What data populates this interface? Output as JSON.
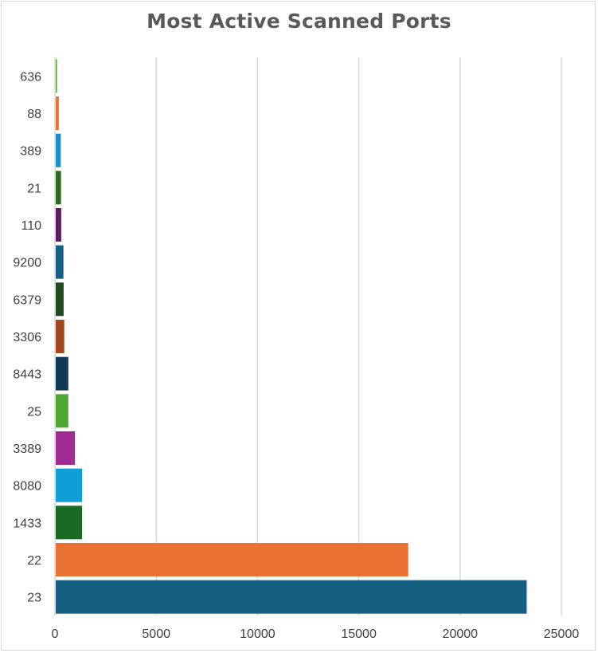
{
  "chart_data": {
    "type": "bar",
    "orientation": "horizontal",
    "title": "Most Active Scanned Ports",
    "xlabel": "",
    "ylabel": "",
    "xlim": [
      0,
      25000
    ],
    "x_ticks": [
      0,
      5000,
      10000,
      15000,
      20000,
      25000
    ],
    "x_tick_labels": [
      "0",
      "5000",
      "10000",
      "15000",
      "20000",
      "25000"
    ],
    "grid": "vertical",
    "legend": "none",
    "categories": [
      "636",
      "88",
      "389",
      "21",
      "110",
      "9200",
      "6379",
      "3306",
      "8443",
      "25",
      "3389",
      "8080",
      "1433",
      "22",
      "23"
    ],
    "values": [
      60,
      150,
      250,
      260,
      270,
      380,
      390,
      420,
      620,
      620,
      950,
      1300,
      1300,
      17400,
      23250
    ],
    "colors": [
      "#4ea72e",
      "#e97132",
      "#1a8fca",
      "#2e6b1f",
      "#5c1c5c",
      "#156082",
      "#1e4a1e",
      "#a0471b",
      "#0f3a54",
      "#4ea72e",
      "#a02b93",
      "#0f9ed5",
      "#196b24",
      "#e97132",
      "#156082"
    ]
  }
}
